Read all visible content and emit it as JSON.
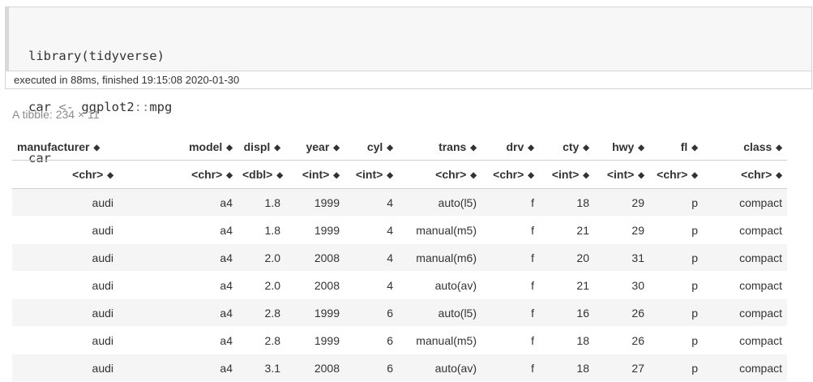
{
  "code": {
    "line1": "library(tidyverse)",
    "line2_var": "car ",
    "line2_op": "<-",
    "line2_pkg": " ggplot2",
    "line2_ns": "::",
    "line2_fn": "mpg",
    "line3": "car"
  },
  "status": "executed in 88ms, finished 19:15:08 2020-01-30",
  "caption": "A tibble: 234 × 11",
  "sort_glyph": "◆",
  "columns": [
    {
      "name": "manufacturer",
      "type": "<chr>"
    },
    {
      "name": "model",
      "type": "<chr>"
    },
    {
      "name": "displ",
      "type": "<dbl>"
    },
    {
      "name": "year",
      "type": "<int>"
    },
    {
      "name": "cyl",
      "type": "<int>"
    },
    {
      "name": "trans",
      "type": "<chr>"
    },
    {
      "name": "drv",
      "type": "<chr>"
    },
    {
      "name": "cty",
      "type": "<int>"
    },
    {
      "name": "hwy",
      "type": "<int>"
    },
    {
      "name": "fl",
      "type": "<chr>"
    },
    {
      "name": "class",
      "type": "<chr>"
    }
  ],
  "rows": [
    [
      "audi",
      "a4",
      "1.8",
      "1999",
      "4",
      "auto(l5)",
      "f",
      "18",
      "29",
      "p",
      "compact"
    ],
    [
      "audi",
      "a4",
      "1.8",
      "1999",
      "4",
      "manual(m5)",
      "f",
      "21",
      "29",
      "p",
      "compact"
    ],
    [
      "audi",
      "a4",
      "2.0",
      "2008",
      "4",
      "manual(m6)",
      "f",
      "20",
      "31",
      "p",
      "compact"
    ],
    [
      "audi",
      "a4",
      "2.0",
      "2008",
      "4",
      "auto(av)",
      "f",
      "21",
      "30",
      "p",
      "compact"
    ],
    [
      "audi",
      "a4",
      "2.8",
      "1999",
      "6",
      "auto(l5)",
      "f",
      "16",
      "26",
      "p",
      "compact"
    ],
    [
      "audi",
      "a4",
      "2.8",
      "1999",
      "6",
      "manual(m5)",
      "f",
      "18",
      "26",
      "p",
      "compact"
    ],
    [
      "audi",
      "a4",
      "3.1",
      "2008",
      "6",
      "auto(av)",
      "f",
      "18",
      "27",
      "p",
      "compact"
    ]
  ]
}
